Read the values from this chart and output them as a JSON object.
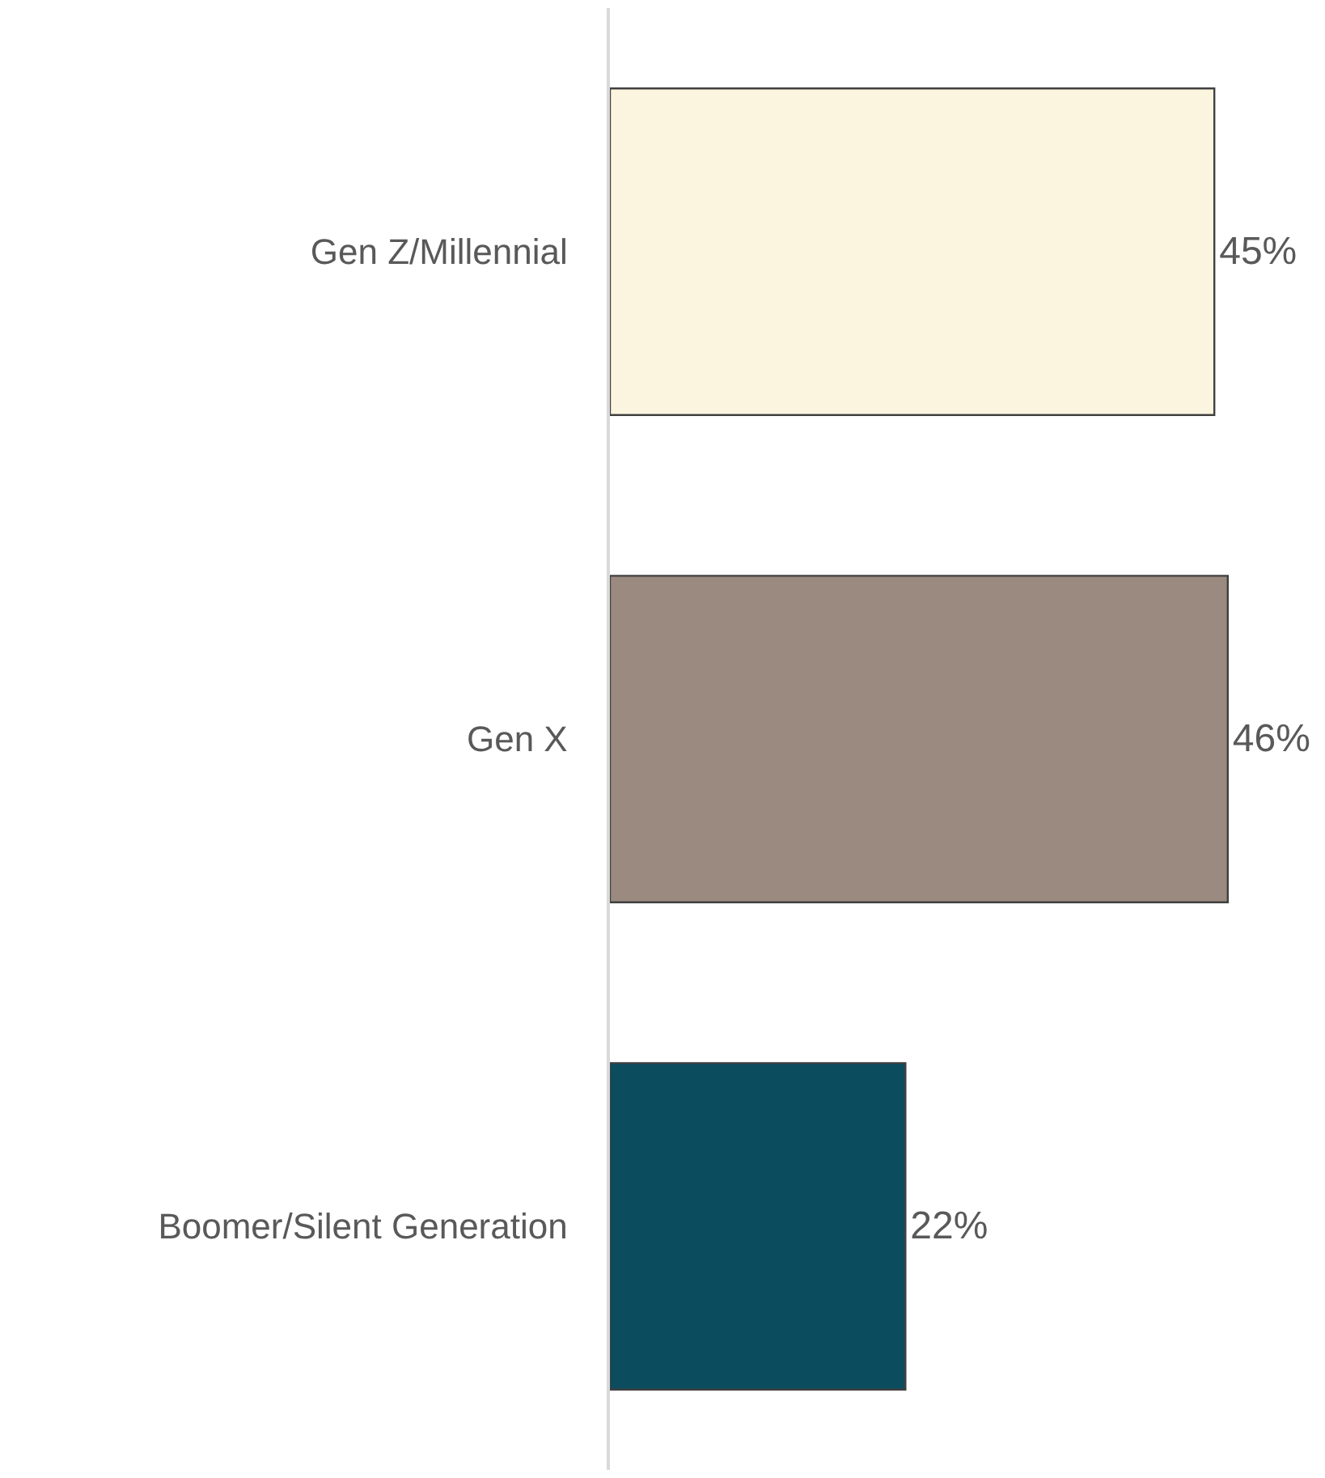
{
  "chart_data": {
    "type": "bar",
    "orientation": "horizontal",
    "categories": [
      "Gen Z/Millennial",
      "Gen X",
      "Boomer/Silent Generation"
    ],
    "values": [
      45,
      46,
      22
    ],
    "colors": [
      "#fbf5e0",
      "#9a8a7f",
      "#0b4d5f"
    ],
    "value_labels": [
      "45%",
      "46%",
      "22%"
    ],
    "legend": false
  }
}
